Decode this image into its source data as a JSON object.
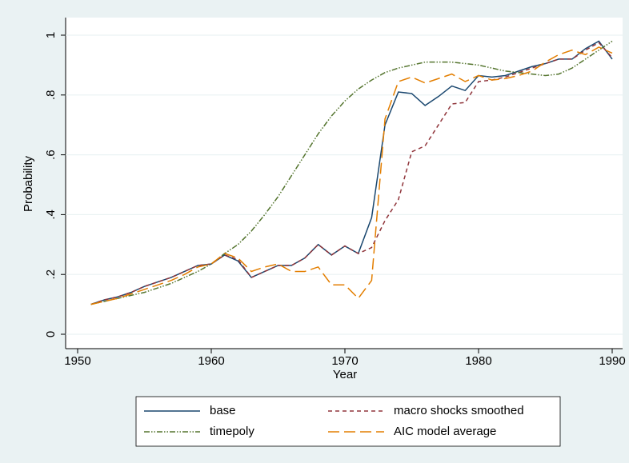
{
  "chart_data": {
    "type": "line",
    "xlabel": "Year",
    "ylabel": "Probability",
    "x": [
      1951,
      1952,
      1953,
      1954,
      1955,
      1956,
      1957,
      1958,
      1959,
      1960,
      1961,
      1962,
      1963,
      1964,
      1965,
      1966,
      1967,
      1968,
      1969,
      1970,
      1971,
      1972,
      1973,
      1974,
      1975,
      1976,
      1977,
      1978,
      1979,
      1980,
      1981,
      1982,
      1983,
      1984,
      1985,
      1986,
      1987,
      1988,
      1989,
      1990
    ],
    "series": [
      {
        "name": "base",
        "color": "#1a476f",
        "dash": "none",
        "values": [
          0.1,
          0.115,
          0.125,
          0.14,
          0.16,
          0.175,
          0.19,
          0.21,
          0.23,
          0.235,
          0.265,
          0.245,
          0.19,
          0.21,
          0.23,
          0.23,
          0.255,
          0.3,
          0.265,
          0.295,
          0.27,
          0.39,
          0.7,
          0.81,
          0.805,
          0.765,
          0.795,
          0.83,
          0.815,
          0.865,
          0.86,
          0.865,
          0.88,
          0.895,
          0.905,
          0.92,
          0.92,
          0.955,
          0.98,
          0.92
        ]
      },
      {
        "name": "macro shocks smoothed",
        "color": "#90353b",
        "dash": "5,4",
        "values": [
          0.1,
          0.115,
          0.125,
          0.14,
          0.16,
          0.175,
          0.19,
          0.21,
          0.23,
          0.235,
          0.265,
          0.25,
          0.19,
          0.21,
          0.23,
          0.23,
          0.255,
          0.3,
          0.265,
          0.295,
          0.27,
          0.29,
          0.38,
          0.45,
          0.61,
          0.63,
          0.7,
          0.77,
          0.775,
          0.845,
          0.85,
          0.86,
          0.875,
          0.89,
          0.905,
          0.92,
          0.92,
          0.95,
          0.975,
          0.925
        ]
      },
      {
        "name": "timepoly",
        "color": "#55752f",
        "dash": "7,2,1.5,2,1.5,2",
        "values": [
          0.1,
          0.11,
          0.12,
          0.13,
          0.14,
          0.155,
          0.17,
          0.19,
          0.21,
          0.235,
          0.27,
          0.3,
          0.345,
          0.4,
          0.46,
          0.53,
          0.6,
          0.67,
          0.73,
          0.78,
          0.82,
          0.85,
          0.875,
          0.89,
          0.9,
          0.91,
          0.91,
          0.91,
          0.905,
          0.9,
          0.89,
          0.88,
          0.875,
          0.87,
          0.865,
          0.87,
          0.89,
          0.92,
          0.95,
          0.98
        ]
      },
      {
        "name": "AIC model average",
        "color": "#e37e00",
        "dash": "14,6",
        "values": [
          0.1,
          0.11,
          0.12,
          0.135,
          0.15,
          0.165,
          0.18,
          0.2,
          0.225,
          0.235,
          0.27,
          0.255,
          0.21,
          0.225,
          0.235,
          0.21,
          0.21,
          0.225,
          0.165,
          0.165,
          0.12,
          0.18,
          0.72,
          0.845,
          0.86,
          0.84,
          0.855,
          0.87,
          0.845,
          0.865,
          0.85,
          0.855,
          0.865,
          0.88,
          0.91,
          0.935,
          0.95,
          0.935,
          0.96,
          0.94
        ]
      }
    ],
    "xlim": [
      1950,
      1990
    ],
    "xticks": [
      1950,
      1960,
      1970,
      1980,
      1990
    ],
    "ylim": [
      0,
      1
    ],
    "yticks": [
      0,
      {
        "value": 0.2,
        "label": ".2"
      },
      {
        "value": 0.4,
        "label": ".4"
      },
      {
        "value": 0.6,
        "label": ".6"
      },
      {
        "value": 0.8,
        "label": ".8"
      },
      1
    ],
    "grid": true,
    "legend": "bottom"
  }
}
